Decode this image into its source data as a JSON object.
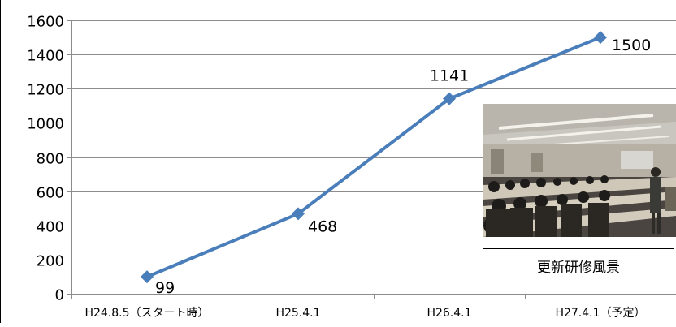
{
  "chart_data": {
    "type": "line",
    "categories": [
      "H24.8.5（スタート時）",
      "H25.4.1",
      "H26.4.1",
      "H27.4.1（予定）"
    ],
    "series": [
      {
        "values": [
          99,
          468,
          1141,
          1500
        ]
      }
    ],
    "data_labels": [
      "99",
      "468",
      "1141",
      "1500"
    ],
    "y_ticks": [
      0,
      200,
      400,
      600,
      800,
      1000,
      1200,
      1400,
      1600
    ],
    "ylim": [
      0,
      1600
    ],
    "grid": true,
    "line_color": "#4a7ebb",
    "marker_color": "#4a7ebb",
    "marker": "diamond"
  },
  "photo": {
    "caption": "更新研修風景"
  }
}
